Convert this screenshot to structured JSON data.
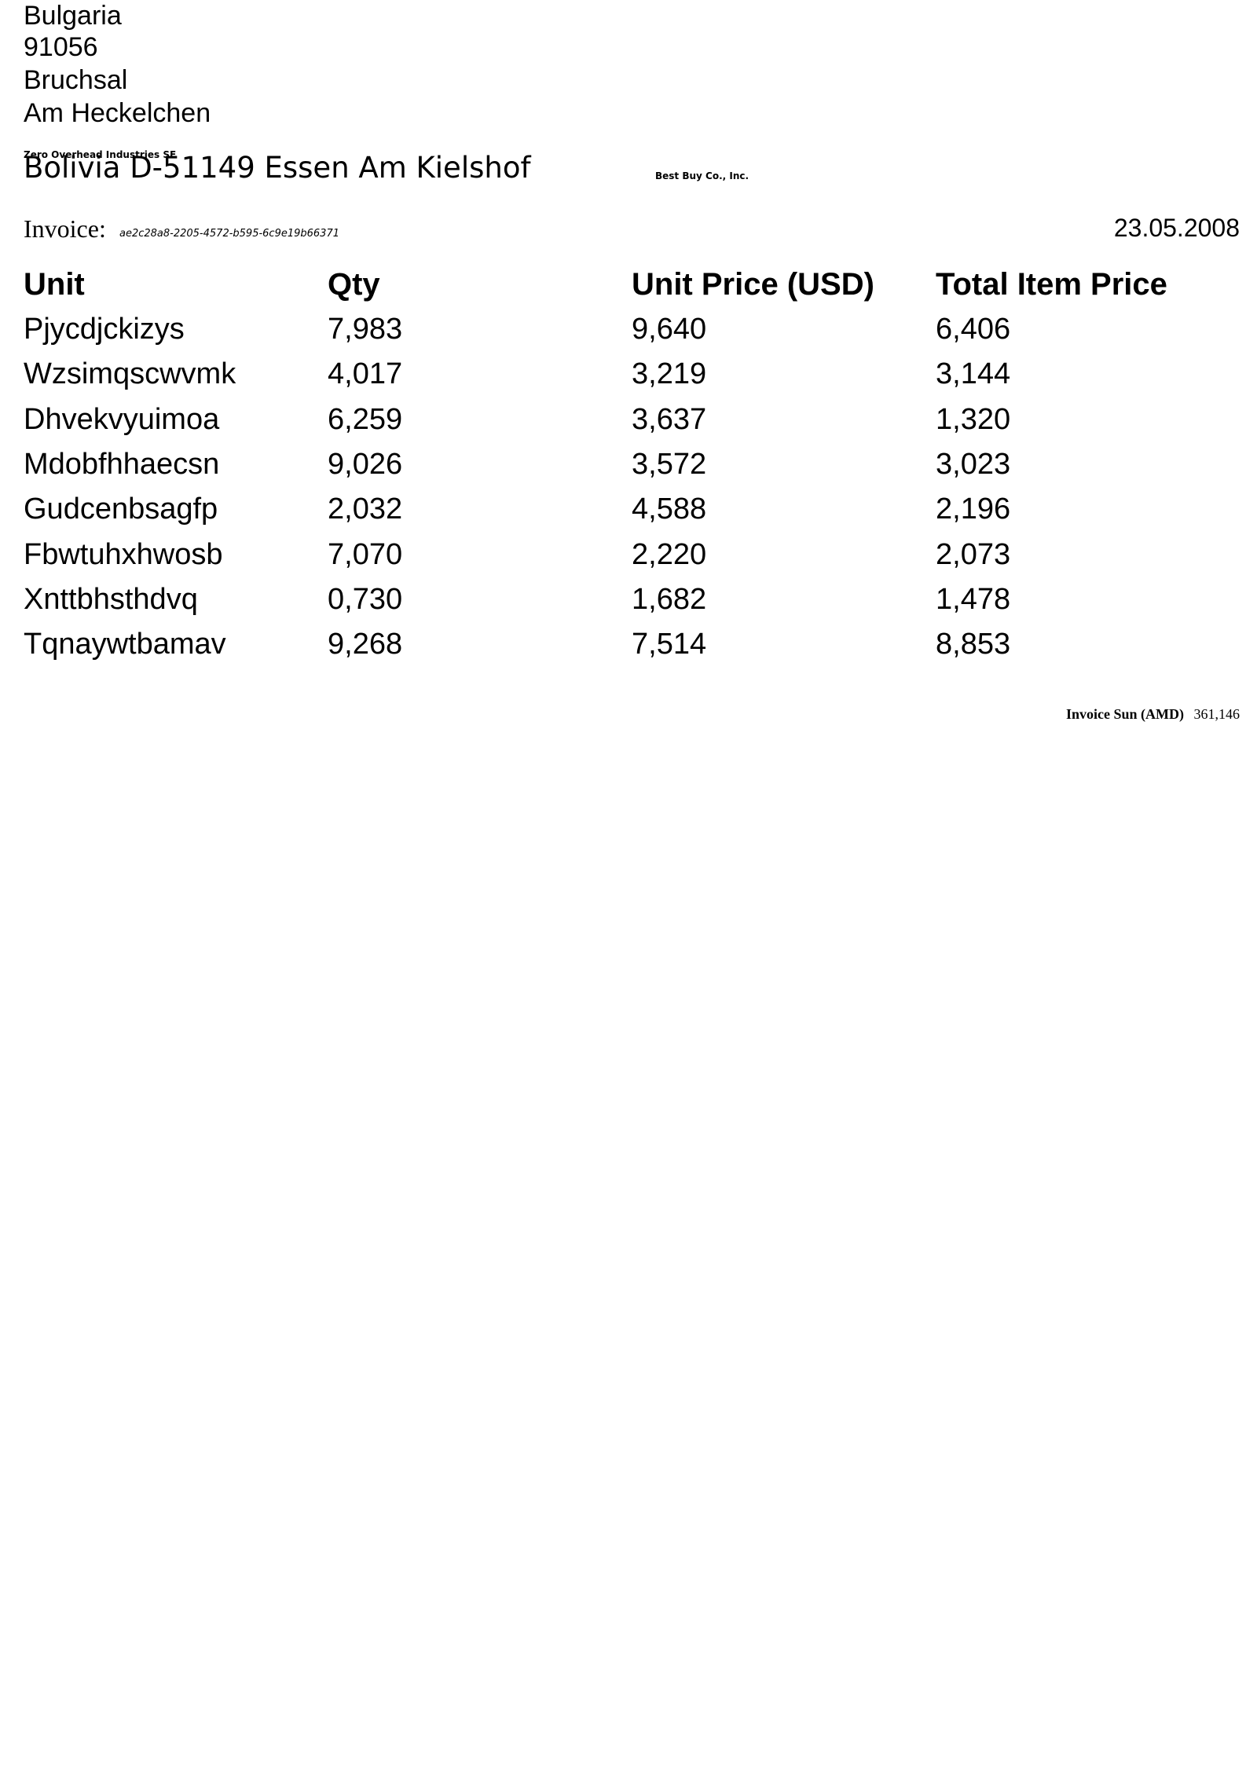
{
  "recipient_address": {
    "country": "Bulgaria",
    "postcode": "91056",
    "city": "Bruchsal",
    "street": "Am Heckelchen"
  },
  "sender": {
    "company": "Zero Overhead Industries SE",
    "address_line": "Bolivia D-51149 Essen Am Kielshof"
  },
  "recipient_company": "Best Buy Co., Inc.",
  "invoice": {
    "label": "Invoice:",
    "id": "ae2c28a8-2205-4572-b595-6c9e19b66371",
    "date": "23.05.2008"
  },
  "table": {
    "headers": [
      "Unit",
      "Qty",
      "Unit Price (USD)",
      "Total Item Price"
    ],
    "rows": [
      [
        "Pjycdjckizys",
        "7,983",
        "9,640",
        "6,406"
      ],
      [
        "Wzsimqscwvmk",
        "4,017",
        "3,219",
        "3,144"
      ],
      [
        "Dhvekvyuimoa",
        "6,259",
        "3,637",
        "1,320"
      ],
      [
        "Mdobfhhaecsn",
        "9,026",
        "3,572",
        "3,023"
      ],
      [
        "Gudcenbsagfp",
        "2,032",
        "4,588",
        "2,196"
      ],
      [
        "Fbwtuhxhwosb",
        "7,070",
        "2,220",
        "2,073"
      ],
      [
        "Xnttbhsthdvq",
        "0,730",
        "1,682",
        "1,478"
      ],
      [
        "Tqnaywtbamav",
        "9,268",
        "7,514",
        "8,853"
      ]
    ]
  },
  "summary": {
    "label": "Invoice Sun (AMD)",
    "value": "361,146"
  }
}
